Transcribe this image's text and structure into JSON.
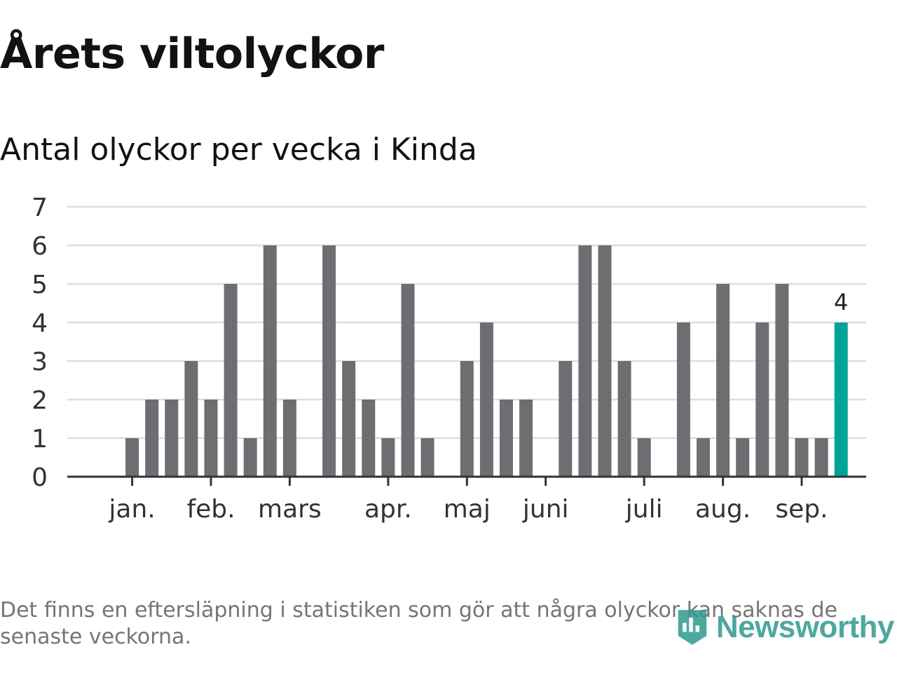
{
  "title": "Årets viltolyckor",
  "subtitle": "Antal olyckor per vecka i Kinda",
  "footnote": "Det finns en eftersläpning i statistiken som gör att några olyckor kan saknas de senaste veckorna.",
  "logo": {
    "text": "Newsworthy",
    "icon": "newsworthy-logo-icon"
  },
  "colors": {
    "bar": "#6e6d72",
    "highlight": "#00a399",
    "grid": "#dddddd",
    "axis": "#333333",
    "text": "#333333"
  },
  "chart_data": {
    "type": "bar",
    "ylim": [
      0,
      7
    ],
    "yticks": [
      0,
      1,
      2,
      3,
      4,
      5,
      6,
      7
    ],
    "grid": true,
    "values": [
      0,
      1,
      2,
      2,
      3,
      2,
      5,
      1,
      6,
      2,
      0,
      6,
      3,
      2,
      1,
      5,
      1,
      0,
      3,
      4,
      2,
      2,
      0,
      3,
      6,
      6,
      3,
      1,
      0,
      4,
      1,
      5,
      1,
      4,
      5,
      1,
      1,
      4
    ],
    "highlight_index": 37,
    "highlight_label": "4",
    "month_labels": [
      {
        "label": "jan.",
        "week": 1
      },
      {
        "label": "feb.",
        "week": 5
      },
      {
        "label": "mars",
        "week": 9
      },
      {
        "label": "apr.",
        "week": 14
      },
      {
        "label": "maj",
        "week": 18
      },
      {
        "label": "juni",
        "week": 22
      },
      {
        "label": "juli",
        "week": 27
      },
      {
        "label": "aug.",
        "week": 31
      },
      {
        "label": "sep.",
        "week": 35
      }
    ]
  }
}
